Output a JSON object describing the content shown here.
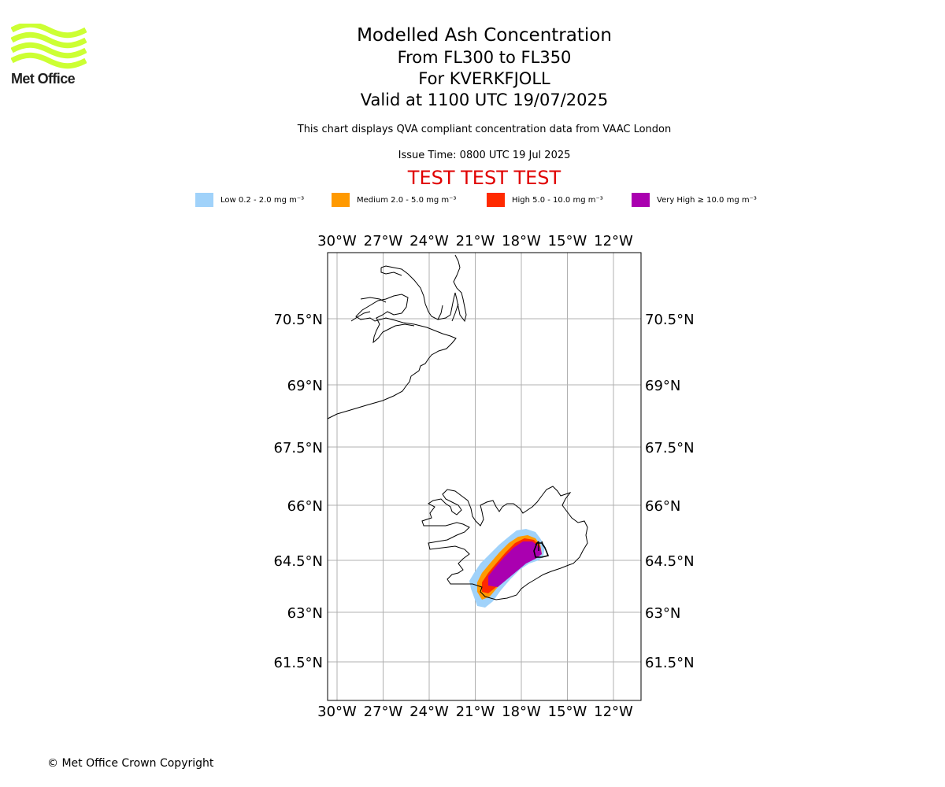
{
  "logo": {
    "text": "Met Office",
    "color": "#ccff33"
  },
  "title": {
    "line1": "Modelled Ash Concentration",
    "line2": "From FL300 to FL350",
    "line3": "For KVERKFJOLL",
    "line4": "Valid at 1100 UTC 19/07/2025"
  },
  "subtitle": "This chart displays QVA compliant concentration data from VAAC London",
  "issue_time": "Issue Time: 0800 UTC 19 Jul 2025",
  "test_label": "TEST TEST TEST",
  "legend": [
    {
      "label": "Low 0.2 - 2.0 mg m⁻³",
      "color": "#a0d2fa"
    },
    {
      "label": "Medium 2.0 - 5.0 mg m⁻³",
      "color": "#ff9900"
    },
    {
      "label": "High 5.0 - 10.0 mg m⁻³",
      "color": "#ff2a00"
    },
    {
      "label": "Very High ≥ 10.0 mg m⁻³",
      "color": "#aa00b0"
    }
  ],
  "map": {
    "lon_range": [
      -30.5,
      -13.5
    ],
    "lat_range": [
      60.5,
      71.5
    ],
    "lon_ticks": [
      -30,
      -27,
      -24,
      -21,
      -18,
      -15,
      -12
    ],
    "lon_labels": [
      "30°W",
      "27°W",
      "24°W",
      "21°W",
      "18°W",
      "15°W",
      "12°W"
    ],
    "lat_ticks": [
      61.5,
      63,
      64.5,
      66,
      67.5,
      69,
      70.5
    ],
    "lat_labels": [
      "61.5°N",
      "63°N",
      "64.5°N",
      "66°N",
      "67.5°N",
      "69°N",
      "70.5°N"
    ],
    "volcano": {
      "name": "KVERKFJOLL",
      "lon": -16.7,
      "lat": 64.65
    },
    "gridline_color": "#b0b0b0"
  },
  "copyright": "© Met Office Crown Copyright"
}
